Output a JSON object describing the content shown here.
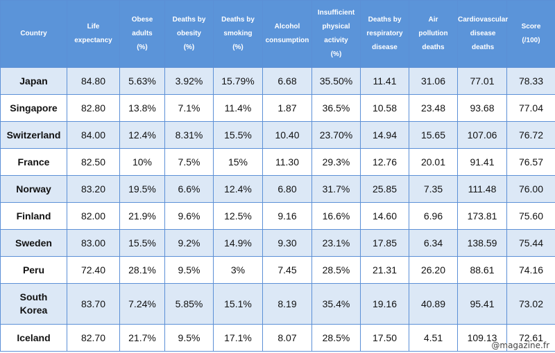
{
  "table": {
    "headers": [
      "Country",
      "Life\nexpectancy",
      "Obese\nadults\n(%)",
      "Deaths by\nobesity\n(%)",
      "Deaths by\nsmoking\n(%)",
      "Alcohol\nconsumption",
      "Insufficient\nphysical\nactivity\n(%)",
      "Deaths by\nrespiratory\ndisease",
      "Air\npollution\ndeaths",
      "Cardiovascular\ndisease\ndeaths",
      "Score\n(/100)"
    ],
    "rows": [
      [
        "Japan",
        "84.80",
        "5.63%",
        "3.92%",
        "15.79%",
        "6.68",
        "35.50%",
        "11.41",
        "31.06",
        "77.01",
        "78.33"
      ],
      [
        "Singapore",
        "82.80",
        "13.8%",
        "7.1%",
        "11.4%",
        "1.87",
        "36.5%",
        "10.58",
        "23.48",
        "93.68",
        "77.04"
      ],
      [
        "Switzerland",
        "84.00",
        "12.4%",
        "8.31%",
        "15.5%",
        "10.40",
        "23.70%",
        "14.94",
        "15.65",
        "107.06",
        "76.72"
      ],
      [
        "France",
        "82.50",
        "10%",
        "7.5%",
        "15%",
        "11.30",
        "29.3%",
        "12.76",
        "20.01",
        "91.41",
        "76.57"
      ],
      [
        "Norway",
        "83.20",
        "19.5%",
        "6.6%",
        "12.4%",
        "6.80",
        "31.7%",
        "25.85",
        "7.35",
        "111.48",
        "76.00"
      ],
      [
        "Finland",
        "82.00",
        "21.9%",
        "9.6%",
        "12.5%",
        "9.16",
        "16.6%",
        "14.60",
        "6.96",
        "173.81",
        "75.60"
      ],
      [
        "Sweden",
        "83.00",
        "15.5%",
        "9.2%",
        "14.9%",
        "9.30",
        "23.1%",
        "17.85",
        "6.34",
        "138.59",
        "75.44"
      ],
      [
        "Peru",
        "72.40",
        "28.1%",
        "9.5%",
        "3%",
        "7.45",
        "28.5%",
        "21.31",
        "26.20",
        "88.61",
        "74.16"
      ],
      [
        "South\nKorea",
        "83.70",
        "7.24%",
        "5.85%",
        "15.1%",
        "8.19",
        "35.4%",
        "19.16",
        "40.89",
        "95.41",
        "73.02"
      ],
      [
        "Iceland",
        "82.70",
        "21.7%",
        "9.5%",
        "17.1%",
        "8.07",
        "28.5%",
        "17.50",
        "4.51",
        "109.13",
        "72.61"
      ]
    ]
  },
  "watermark": "@magazine.fr"
}
